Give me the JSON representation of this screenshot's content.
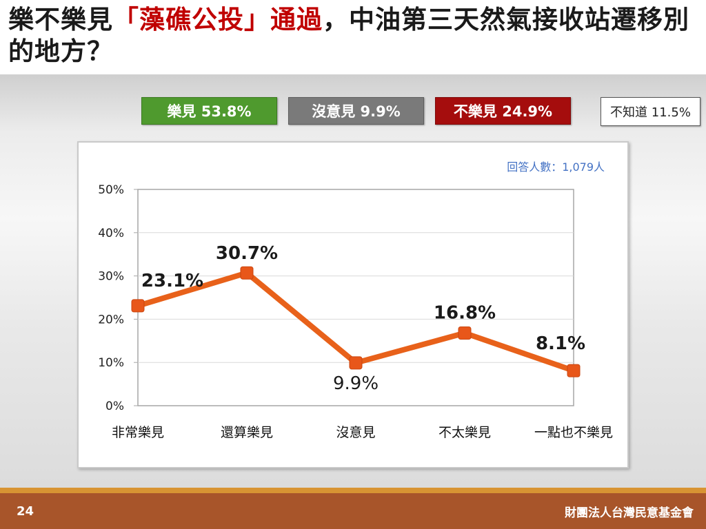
{
  "title": {
    "part1": "樂不樂見",
    "part2": "「藻礁公投」通過",
    "part3": "，中油第三天然氣接收站遷移別的地方？"
  },
  "summary": {
    "like": "樂見 53.8%",
    "no_opinion": "沒意見 9.9%",
    "dislike": "不樂見 24.9%",
    "dont_know": "不知道 11.5%"
  },
  "respondents": "回答人數：1,079人",
  "footer": {
    "page": "24",
    "org": "財團法人台灣民意基金會"
  },
  "colors": {
    "line": "#e8611a",
    "marker": "#e8571a",
    "like_box": "#4f9a2e",
    "no_opinion_box": "#7a7a7a",
    "dislike_box": "#a50d0d",
    "title_accent": "#c00000",
    "respondents_text": "#4472c4"
  },
  "chart_data": {
    "type": "line",
    "categories": [
      "非常樂見",
      "還算樂見",
      "沒意見",
      "不太樂見",
      "一點也不樂見"
    ],
    "values": [
      23.1,
      30.7,
      9.9,
      16.8,
      8.1
    ],
    "labels": [
      "23.1%",
      "30.7%",
      "9.9%",
      "16.8%",
      "8.1%"
    ],
    "yticks": [
      "0%",
      "10%",
      "20%",
      "30%",
      "40%",
      "50%"
    ],
    "ylim": [
      0,
      50
    ],
    "grid": true
  }
}
